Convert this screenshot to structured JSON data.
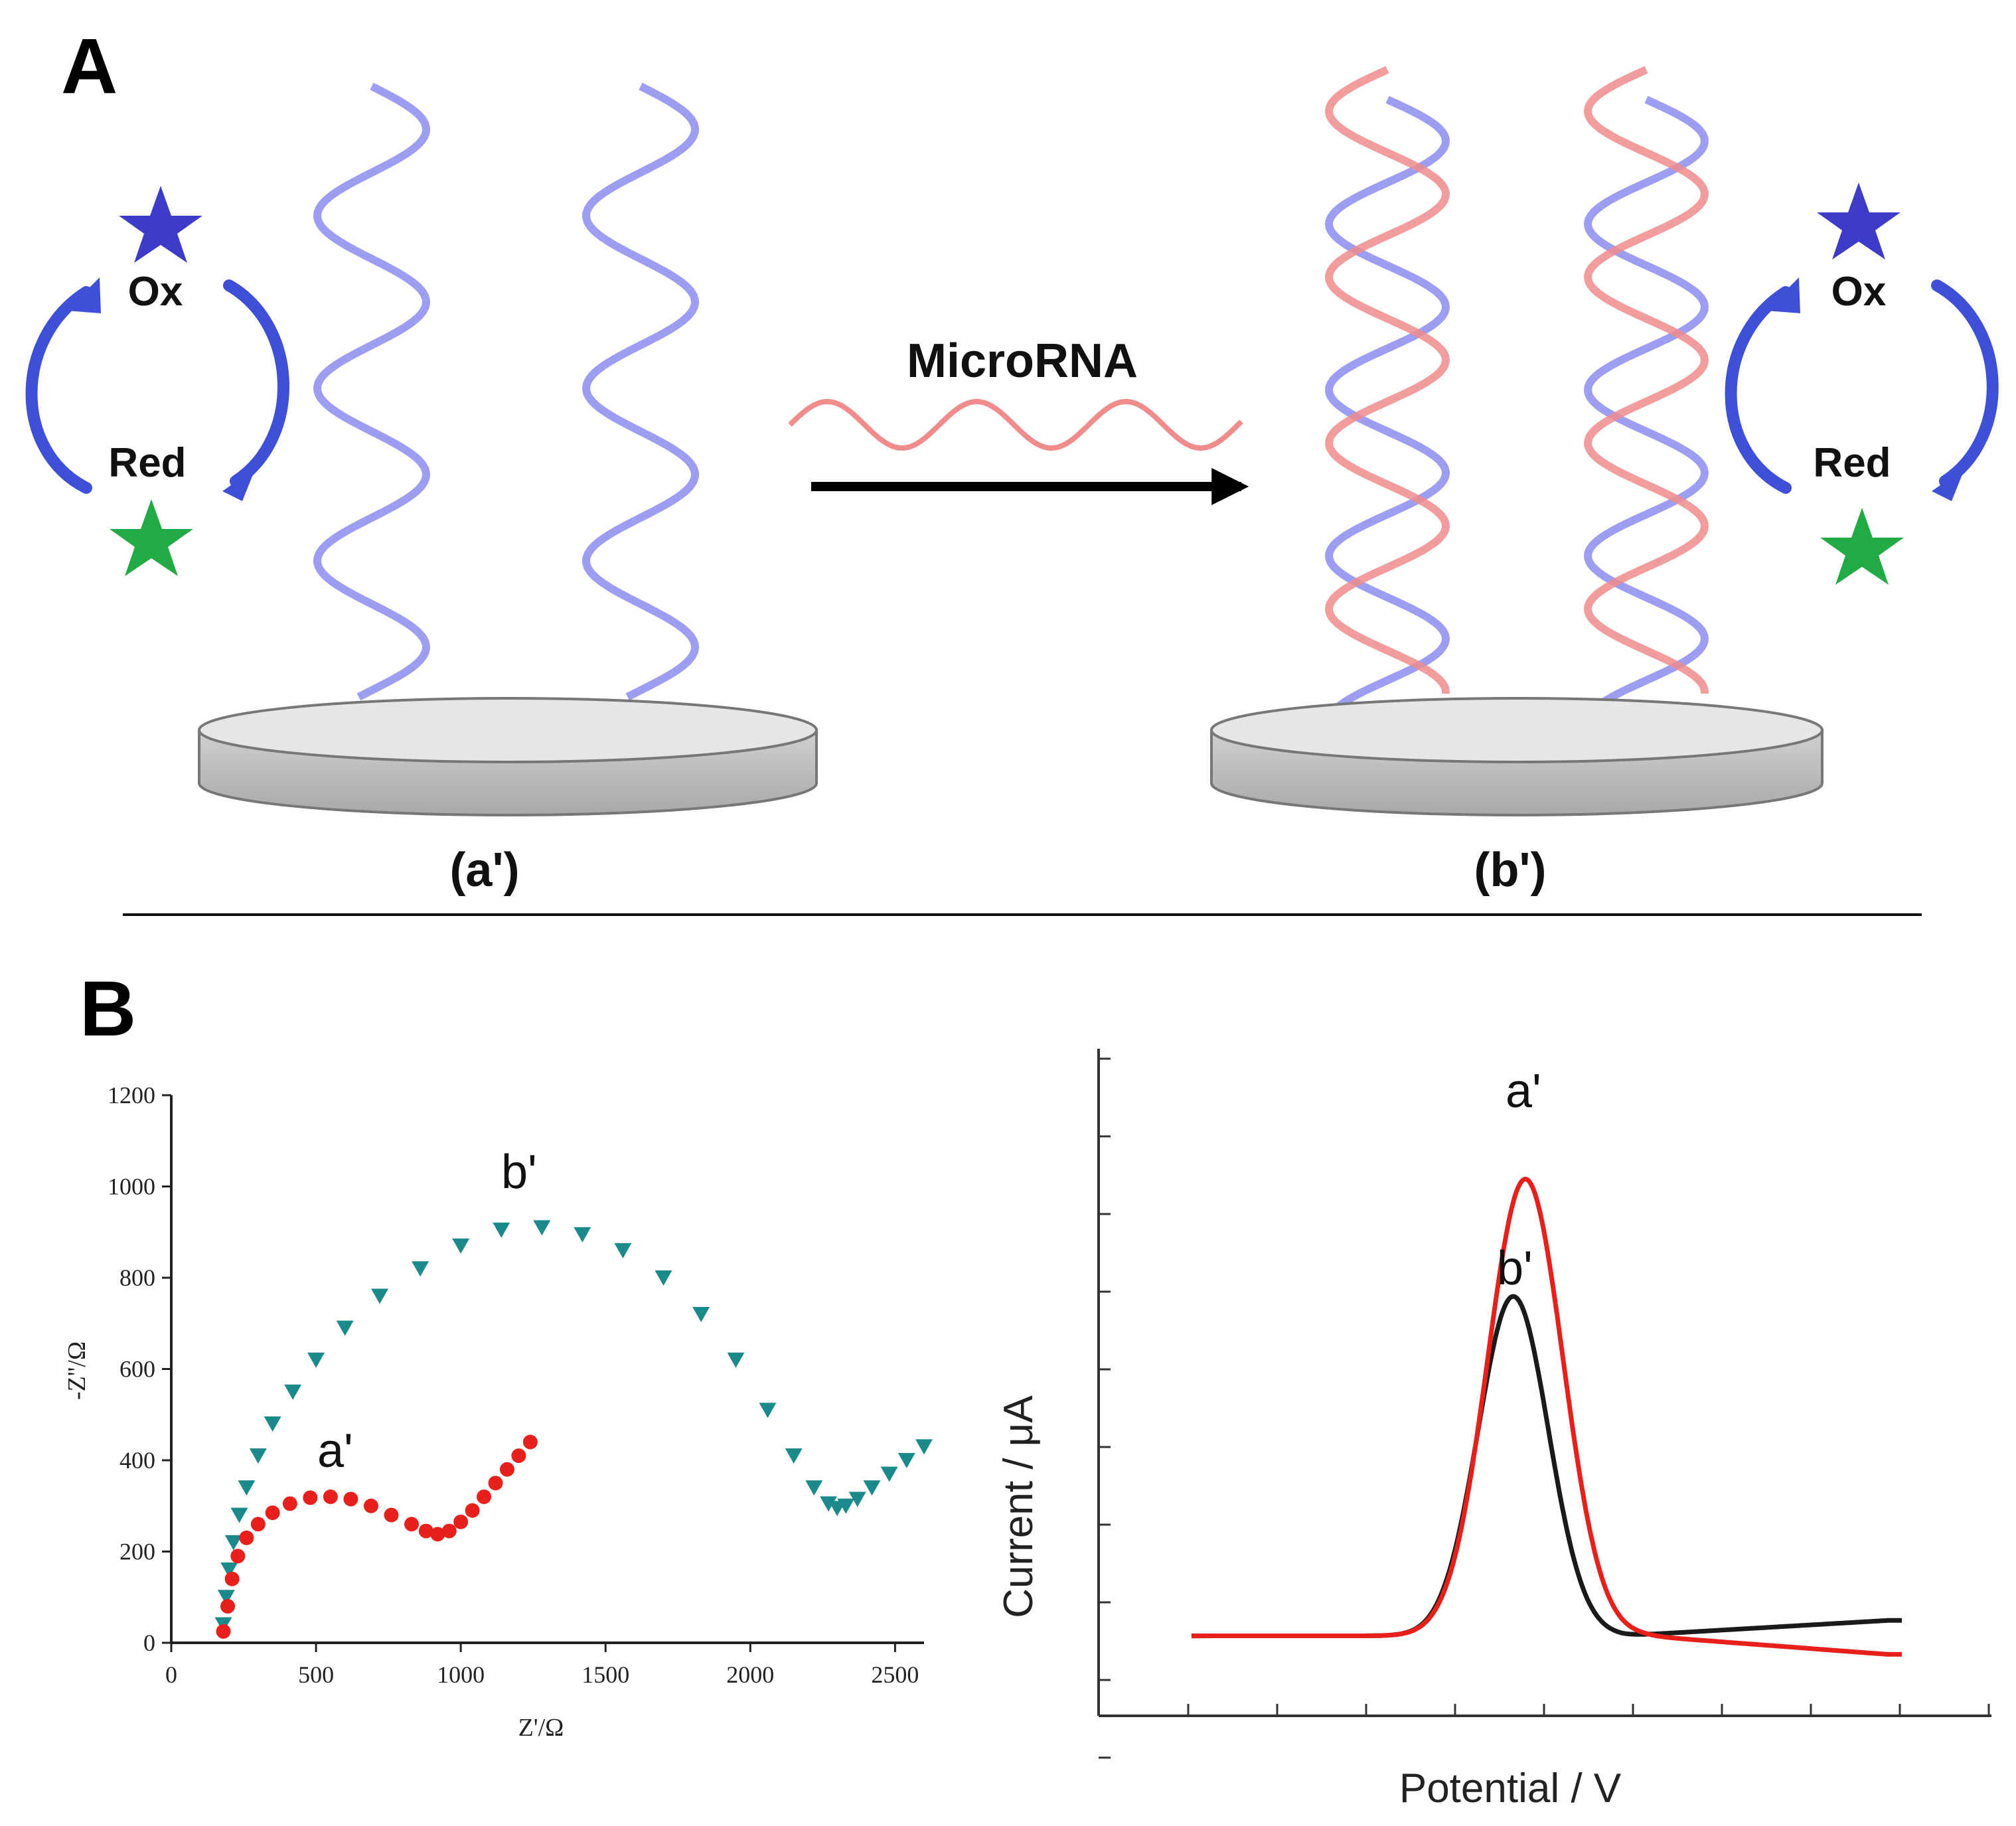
{
  "panel_a": {
    "label": "A",
    "left_cycle": {
      "ox": "Ox",
      "red": "Red"
    },
    "right_cycle": {
      "ox": "Ox",
      "red": "Red"
    },
    "arrow_label": "MicroRNA",
    "electrode_a_label": "(a')",
    "electrode_b_label": "(b')"
  },
  "panel_b": {
    "label": "B"
  },
  "colors": {
    "probe_strand": "#8c8cf0",
    "microrna_strand": "#f08c8c",
    "ox_star": "#3c3cc8",
    "red_star": "#22aa44",
    "cycle_arrow": "#3f4fd8",
    "series_a": "#e8201c",
    "series_b": "#1a8a8a",
    "swv_a": "#e8201c",
    "swv_b": "#1a1a1a"
  },
  "chart_data": [
    {
      "type": "scatter",
      "title": "",
      "xlabel": "Z'/Ω",
      "ylabel": "-Z''/Ω",
      "xlim": [
        0,
        2600
      ],
      "ylim": [
        0,
        1200
      ],
      "xticks": [
        "0",
        "500",
        "1000",
        "1500",
        "2000",
        "2500"
      ],
      "yticks": [
        "0",
        "200",
        "400",
        "600",
        "800",
        "1000",
        "1200"
      ],
      "series": [
        {
          "name": "a'",
          "marker": "circle",
          "x": [
            180,
            195,
            210,
            230,
            260,
            300,
            350,
            410,
            480,
            550,
            620,
            690,
            760,
            830,
            880,
            920,
            960,
            1000,
            1040,
            1080,
            1120,
            1160,
            1200,
            1240
          ],
          "y": [
            25,
            80,
            140,
            190,
            230,
            260,
            285,
            305,
            318,
            320,
            315,
            300,
            280,
            260,
            245,
            238,
            245,
            265,
            290,
            320,
            350,
            380,
            410,
            440
          ]
        },
        {
          "name": "b'",
          "marker": "triangle-down",
          "x": [
            180,
            190,
            200,
            215,
            235,
            260,
            300,
            350,
            420,
            500,
            600,
            720,
            860,
            1000,
            1140,
            1280,
            1420,
            1560,
            1700,
            1830,
            1950,
            2060,
            2150,
            2220,
            2270,
            2300,
            2330,
            2370,
            2420,
            2480,
            2540,
            2600
          ],
          "y": [
            40,
            100,
            160,
            220,
            280,
            340,
            410,
            480,
            550,
            620,
            690,
            760,
            820,
            870,
            905,
            910,
            895,
            860,
            800,
            720,
            620,
            510,
            410,
            340,
            305,
            295,
            300,
            315,
            340,
            370,
            400,
            430
          ]
        }
      ],
      "annotations": [
        "a'",
        "b'"
      ]
    },
    {
      "type": "line",
      "title": "",
      "xlabel": "Potential / V",
      "ylabel": "Current / μA",
      "xlim": [
        0,
        1
      ],
      "ylim": [
        0,
        1
      ],
      "series": [
        {
          "name": "a'",
          "peak_x": 0.47,
          "peak_height": 0.74,
          "peak_width": 0.075,
          "baseline": 0.065,
          "tail_end": 0.035
        },
        {
          "name": "b'",
          "peak_x": 0.453,
          "peak_height": 0.55,
          "peak_width": 0.07,
          "baseline": 0.065,
          "tail_end": 0.09
        }
      ],
      "annotations": [
        "a'",
        "b'"
      ]
    }
  ]
}
